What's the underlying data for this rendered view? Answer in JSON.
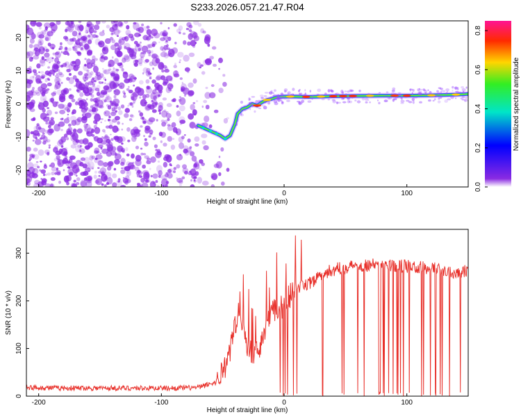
{
  "title": "S233.2026.057.21.47.R04",
  "colors": {
    "snr_line": "#e8302a",
    "noise": "#8a2be2",
    "background": "#ffffff"
  },
  "chart_data": [
    {
      "type": "heatmap",
      "xlabel": "Height of straight line (km)",
      "ylabel": "Frequency (Hz)",
      "xlim": [
        -210,
        150
      ],
      "ylim": [
        -25,
        25
      ],
      "x_ticks": [
        -200,
        -100,
        0,
        100
      ],
      "y_ticks": [
        -20,
        -10,
        0,
        10,
        20
      ],
      "colorbar": {
        "label": "Normalized spectral amplitude",
        "range": [
          0,
          0.85
        ],
        "ticks": [
          "0.0",
          "0.2",
          "0.4",
          "0.6",
          "0.8"
        ]
      },
      "ridge": {
        "x": [
          -70,
          -64,
          -58,
          -52,
          -48,
          -44,
          -40,
          -38,
          -34,
          -30,
          -26,
          -22,
          -18,
          -14,
          -10,
          -6,
          0,
          10,
          20,
          40,
          60,
          80,
          100,
          120,
          140,
          150
        ],
        "freq": [
          -6.5,
          -7.5,
          -8.5,
          -9.5,
          -10.5,
          -9.5,
          -6,
          -3,
          -1.5,
          -1,
          0,
          -0.5,
          0.5,
          1.2,
          1.5,
          2,
          2.2,
          2.2,
          2.1,
          2.3,
          2.4,
          2.5,
          2.5,
          2.6,
          2.8,
          3
        ]
      }
    },
    {
      "type": "line",
      "xlabel": "Height of straight line (km)",
      "ylabel": "SNR (10 * v/v)",
      "xlim": [
        -210,
        150
      ],
      "ylim": [
        0,
        350
      ],
      "x_ticks": [
        -200,
        -100,
        0,
        100
      ],
      "y_ticks": [
        0,
        100,
        200,
        300
      ],
      "series": [
        {
          "x": [
            -210,
            -180,
            -150,
            -120,
            -90,
            -70,
            -55,
            -45,
            -40,
            -36,
            -33,
            -30,
            -25,
            -20,
            -15,
            -10,
            -5,
            0,
            10,
            20,
            30,
            40,
            60,
            80,
            100,
            120,
            140,
            150
          ],
          "values": [
            18,
            17,
            17,
            17,
            17,
            18,
            30,
            80,
            150,
            200,
            130,
            110,
            85,
            100,
            150,
            175,
            180,
            195,
            225,
            235,
            255,
            265,
            275,
            275,
            272,
            268,
            260,
            265
          ]
        }
      ]
    }
  ]
}
